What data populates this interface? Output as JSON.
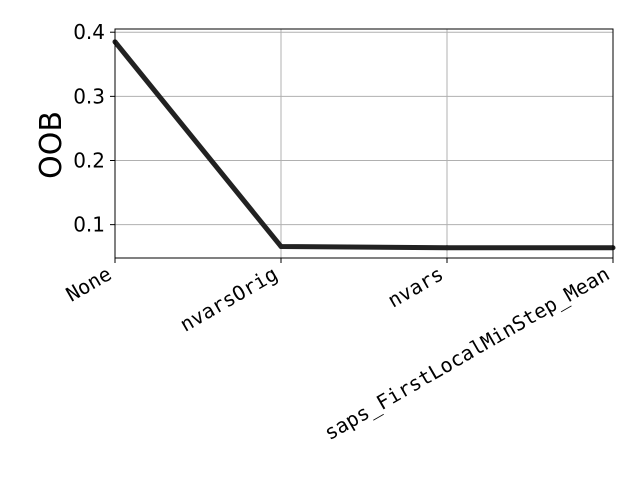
{
  "chart_data": {
    "type": "line",
    "categories": [
      "None",
      "nvarsOrig",
      "nvars",
      "saps_FirstLocalMinStep_Mean"
    ],
    "series": [
      {
        "values": [
          0.385,
          0.066,
          0.064,
          0.064
        ],
        "color": "#222222"
      }
    ],
    "ylabel": "OOB",
    "xlabel": "",
    "ylim": [
      0.048,
      0.405
    ],
    "yticks": [
      0.1,
      0.2,
      0.3,
      0.4
    ],
    "ytick_labels": [
      "0.1",
      "0.2",
      "0.3",
      "0.4"
    ],
    "grid": true
  }
}
